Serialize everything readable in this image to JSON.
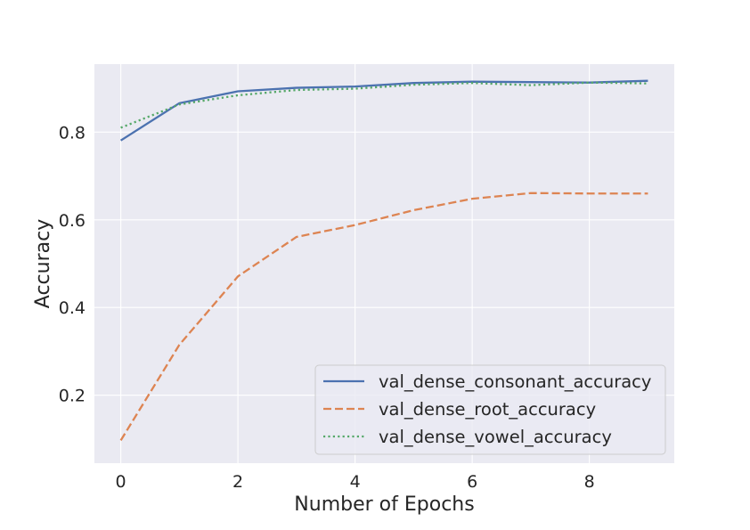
{
  "chart_data": {
    "type": "line",
    "title": "",
    "xlabel": "Number of Epochs",
    "ylabel": "Accuracy",
    "xlim": [
      -0.45,
      9.45
    ],
    "ylim": [
      0.045,
      0.955
    ],
    "xticks": [
      0,
      2,
      4,
      6,
      8
    ],
    "xtick_labels": [
      "0",
      "2",
      "4",
      "6",
      "8"
    ],
    "yticks": [
      0.2,
      0.4,
      0.6,
      0.8
    ],
    "ytick_labels": [
      "0.2",
      "0.4",
      "0.6",
      "0.8"
    ],
    "grid": true,
    "legend_position": "lower-right",
    "x": [
      0,
      1,
      2,
      3,
      4,
      5,
      6,
      7,
      8,
      9
    ],
    "series": [
      {
        "name": "val_dense_consonant_accuracy",
        "values": [
          0.781,
          0.866,
          0.893,
          0.901,
          0.904,
          0.912,
          0.915,
          0.914,
          0.913,
          0.917
        ],
        "color": "#4c72b0",
        "dash": "solid"
      },
      {
        "name": "val_dense_root_accuracy",
        "values": [
          0.097,
          0.315,
          0.471,
          0.561,
          0.588,
          0.622,
          0.648,
          0.661,
          0.66,
          0.66
        ],
        "color": "#dd8452",
        "dash": "dashed"
      },
      {
        "name": "val_dense_vowel_accuracy",
        "values": [
          0.81,
          0.863,
          0.884,
          0.896,
          0.899,
          0.908,
          0.912,
          0.907,
          0.913,
          0.911
        ],
        "color": "#55a868",
        "dash": "dotted"
      }
    ],
    "plot_background": "#eaeaf2",
    "grid_color": "#ffffff"
  }
}
